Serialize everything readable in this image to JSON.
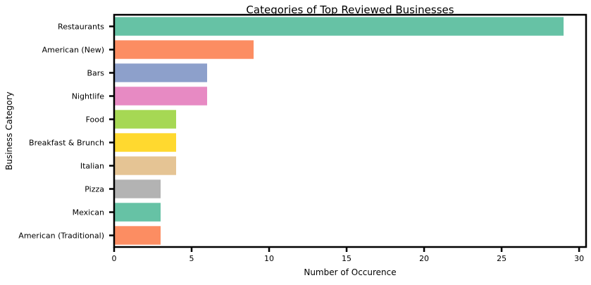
{
  "chart_data": {
    "type": "bar",
    "orientation": "horizontal",
    "title": "Categories of Top Reviewed Businesses",
    "xlabel": "Number of Occurence",
    "ylabel": "Business Category",
    "categories": [
      "Restaurants",
      "American (New)",
      "Bars",
      "Nightlife",
      "Food",
      "Breakfast & Brunch",
      "Italian",
      "Pizza",
      "Mexican",
      "American (Traditional)"
    ],
    "values": [
      29,
      9,
      6,
      6,
      4,
      4,
      4,
      3,
      3,
      3
    ],
    "colors": [
      "#66c2a5",
      "#fc8d62",
      "#8da0cb",
      "#e78ac3",
      "#a6d854",
      "#ffd92f",
      "#e5c494",
      "#b3b3b3",
      "#66c2a5",
      "#fc8d62"
    ],
    "xlim": [
      0,
      30.45
    ],
    "xticks": [
      0,
      5,
      10,
      15,
      20,
      25,
      30
    ],
    "grid": false,
    "legend": "none"
  }
}
